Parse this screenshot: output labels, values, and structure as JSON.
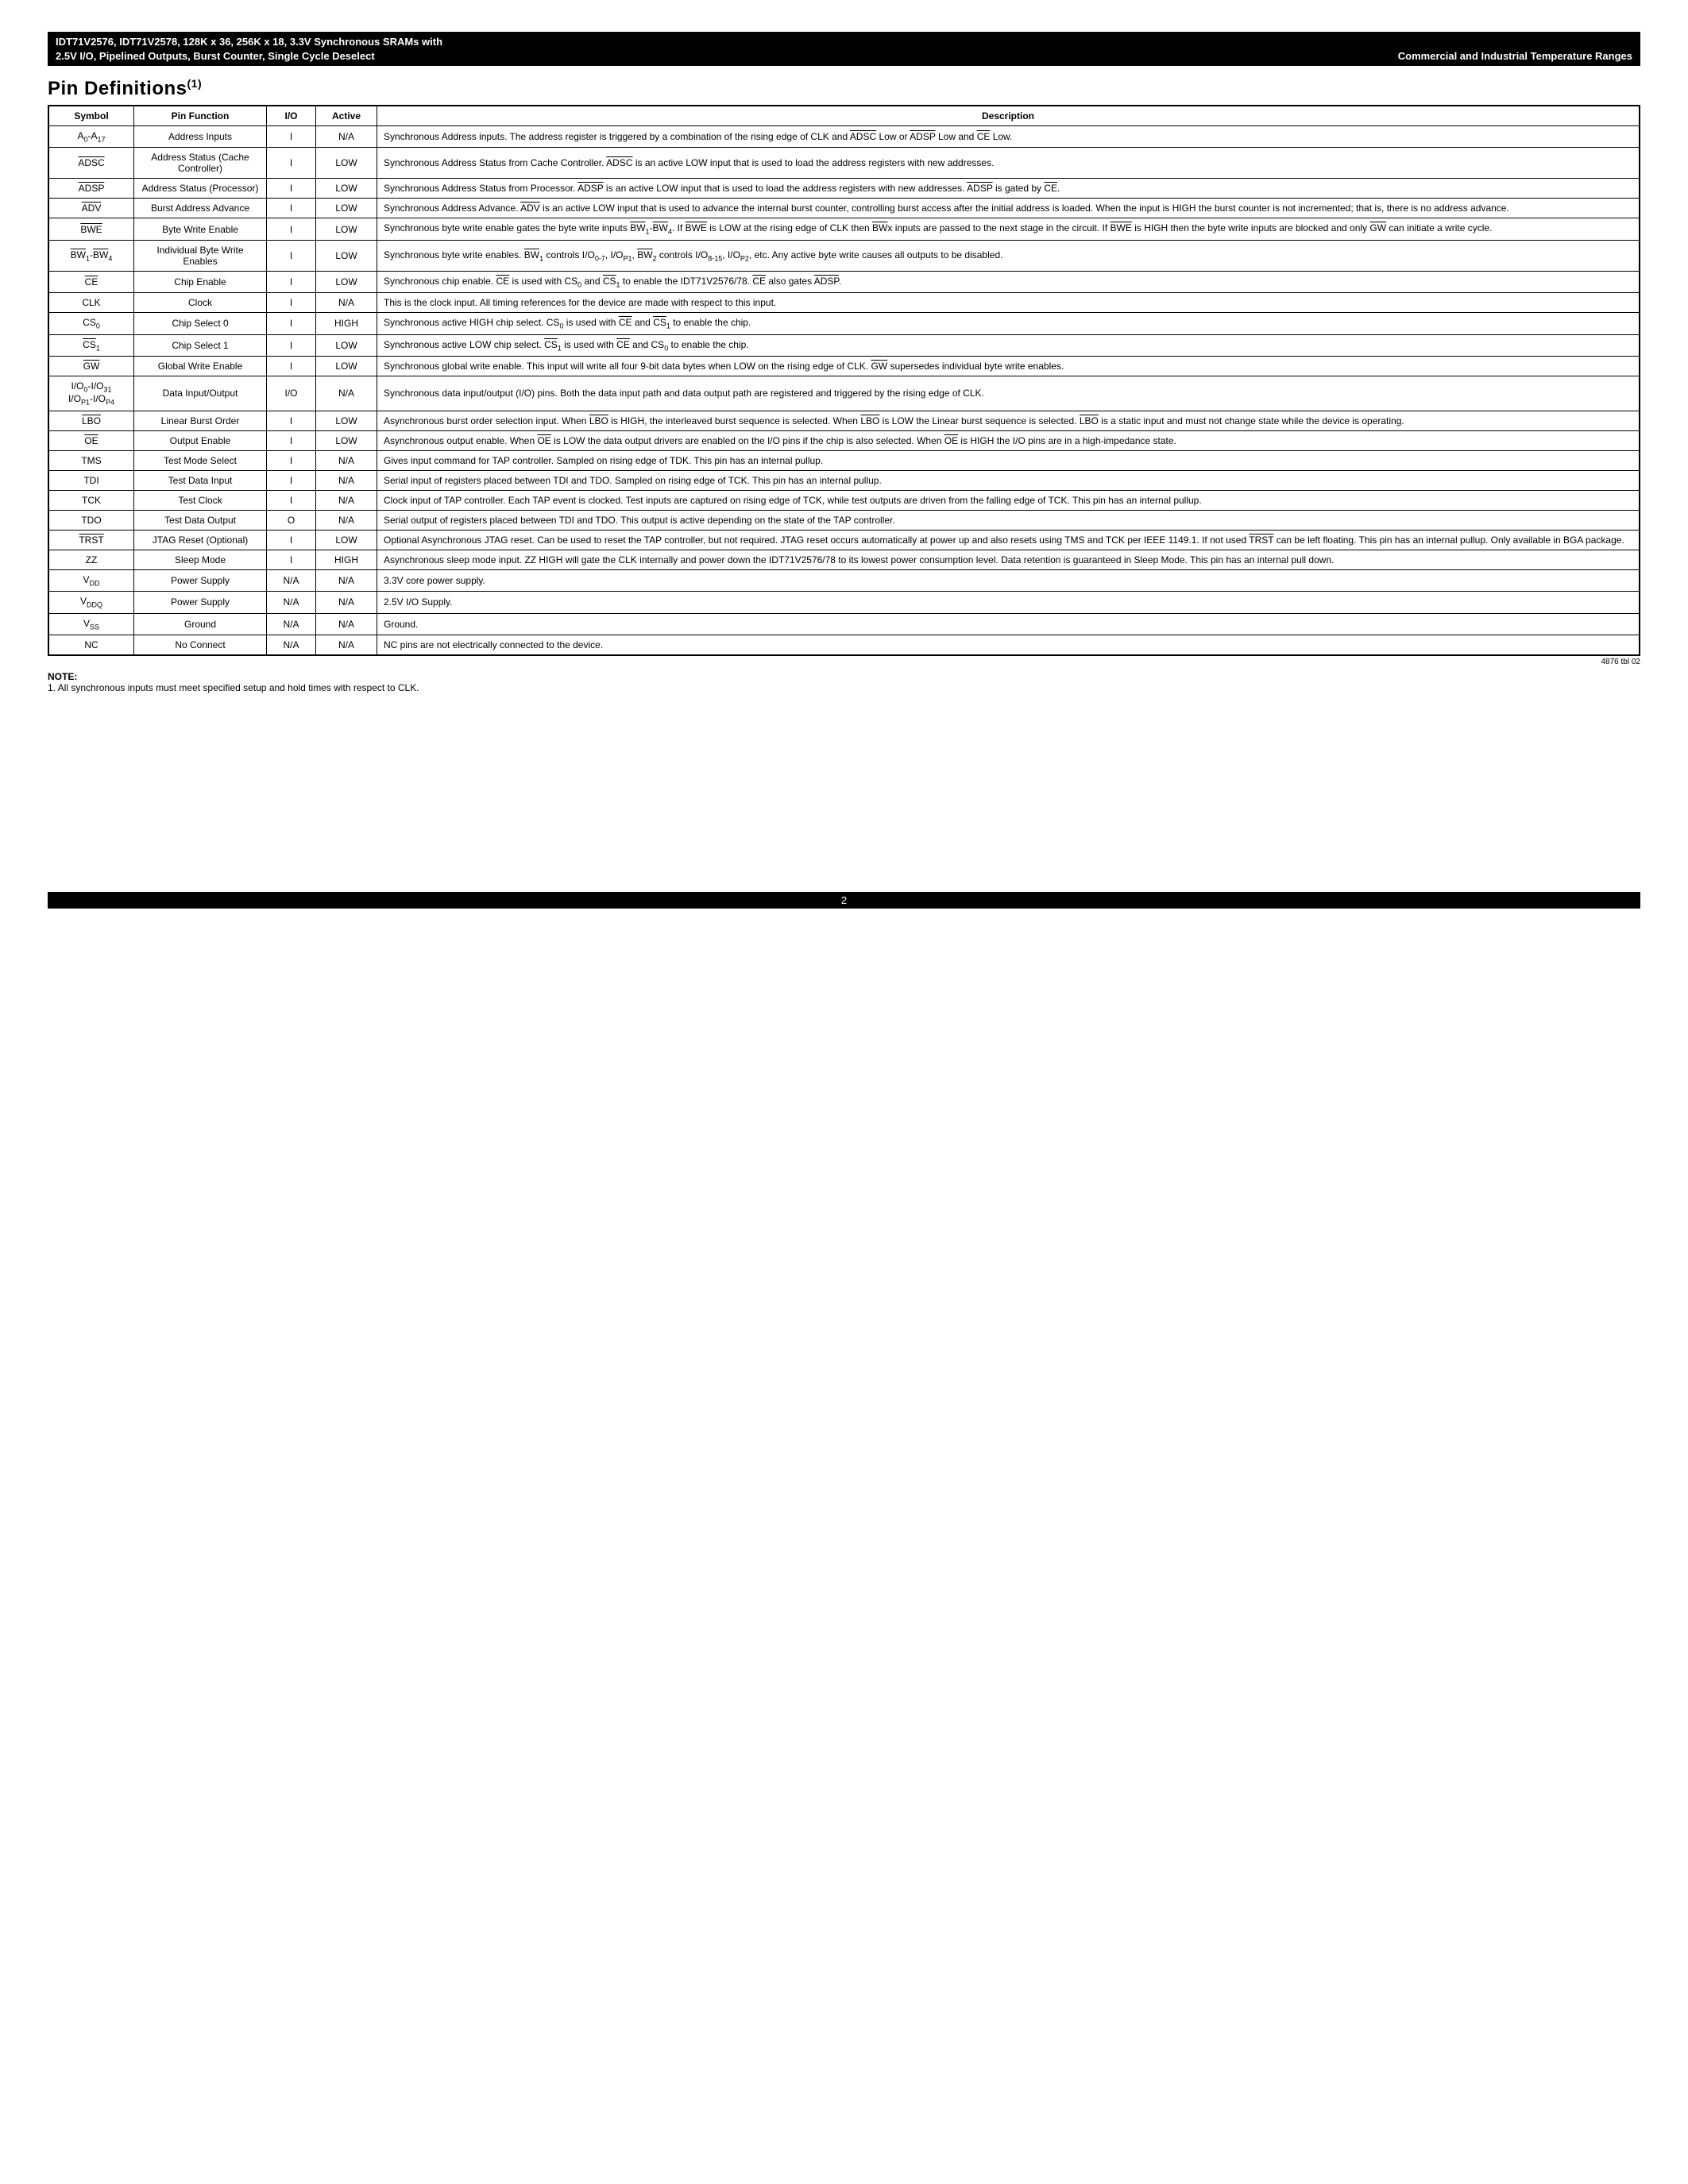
{
  "header": {
    "line1": "IDT71V2576, IDT71V2578, 128K x 36, 256K x 18, 3.3V Synchronous SRAMs with",
    "line2_left": "2.5V I/O, Pipelined Outputs, Burst Counter, Single Cycle Deselect",
    "line2_right": "Commercial and Industrial Temperature Ranges"
  },
  "section_title": "Pin Definitions",
  "section_title_sup": "(1)",
  "table": {
    "columns": [
      "Symbol",
      "Pin Function",
      "I/O",
      "Active",
      "Description"
    ],
    "rows": [
      {
        "symbol_html": "A<sub>0</sub>-A<sub>17</sub>",
        "func": "Address Inputs",
        "io": "I",
        "active": "N/A",
        "desc_html": "Synchronous Address inputs. The address register is triggered by a combination of the rising edge of CLK and <span class=\"overline\">ADSC</span> Low or <span class=\"overline\">ADSP</span> Low and <span class=\"overline\">CE</span> Low."
      },
      {
        "symbol_html": "<span class=\"overline\">ADSC</span>",
        "func": "Address Status (Cache Controller)",
        "io": "I",
        "active": "LOW",
        "desc_html": "Synchronous Address Status from Cache Controller. <span class=\"overline\">ADSC</span> is an active LOW input that is used to load the address registers with new addresses."
      },
      {
        "symbol_html": "<span class=\"overline\">ADSP</span>",
        "func": "Address Status (Processor)",
        "io": "I",
        "active": "LOW",
        "desc_html": "Synchronous Address Status from Processor. <span class=\"overline\">ADSP</span> is an active LOW input that is used to load the address registers with new addresses. <span class=\"overline\">ADSP</span> is gated by <span class=\"overline\">CE</span>."
      },
      {
        "symbol_html": "<span class=\"overline\">ADV</span>",
        "func": "Burst Address Advance",
        "io": "I",
        "active": "LOW",
        "desc_html": "Synchronous Address Advance. <span class=\"overline\">ADV</span> is an active LOW input that is used to advance the internal burst counter, controlling burst access after the initial address is loaded. When the input is HIGH the burst counter is not incremented; that is, there is no address advance."
      },
      {
        "symbol_html": "<span class=\"overline\">BWE</span>",
        "func": "Byte Write Enable",
        "io": "I",
        "active": "LOW",
        "desc_html": "Synchronous byte write enable gates the byte write inputs <span class=\"overline\">BW</span><sub>1</sub>-<span class=\"overline\">BW</span><sub>4</sub>. If <span class=\"overline\">BWE</span> is LOW at the rising edge of CLK then <span class=\"overline\">BW</span>x inputs are passed to the next stage in the circuit. If <span class=\"overline\">BWE</span> is HIGH then the byte write inputs are blocked and only <span class=\"overline\">GW</span> can initiate a write cycle."
      },
      {
        "symbol_html": "<span class=\"overline\">BW</span><sub>1</sub>-<span class=\"overline\">BW</span><sub>4</sub>",
        "func": "Individual Byte Write Enables",
        "io": "I",
        "active": "LOW",
        "desc_html": "Synchronous byte write enables. <span class=\"overline\">BW</span><sub>1</sub> controls I/O<sub>0-7</sub>, I/O<sub>P1</sub>, <span class=\"overline\">BW</span><sub>2</sub> controls I/O<sub>8-15</sub>, I/O<sub>P2</sub>, etc. Any active byte write causes all outputs to be disabled."
      },
      {
        "symbol_html": "<span class=\"overline\">CE</span>",
        "func": "Chip Enable",
        "io": "I",
        "active": "LOW",
        "desc_html": "Synchronous chip enable. <span class=\"overline\">CE</span> is used with CS<sub>0</sub> and <span class=\"overline\">CS</span><sub>1</sub> to enable the IDT71V2576/78. <span class=\"overline\">CE</span> also gates <span class=\"overline\">ADSP</span>."
      },
      {
        "symbol_html": "CLK",
        "func": "Clock",
        "io": "I",
        "active": "N/A",
        "desc_html": "This is the clock input. All timing references for the device are made with respect to this input."
      },
      {
        "symbol_html": "CS<sub>0</sub>",
        "func": "Chip Select 0",
        "io": "I",
        "active": "HIGH",
        "desc_html": "Synchronous active HIGH chip select. CS<sub>0</sub> is used with <span class=\"overline\">CE</span> and <span class=\"overline\">CS</span><sub>1</sub> to enable the chip."
      },
      {
        "symbol_html": "<span class=\"overline\">CS</span><sub>1</sub>",
        "func": "Chip Select 1",
        "io": "I",
        "active": "LOW",
        "desc_html": "Synchronous active LOW chip select. <span class=\"overline\">CS</span><sub>1</sub> is used with <span class=\"overline\">CE</span> and CS<sub>0</sub> to enable the chip."
      },
      {
        "symbol_html": "<span class=\"overline\">GW</span>",
        "func": "Global Write Enable",
        "io": "I",
        "active": "LOW",
        "desc_html": "Synchronous global write enable. This input will write all four 9-bit data bytes when LOW on the rising edge of CLK. <span class=\"overline\">GW</span> supersedes individual byte write enables."
      },
      {
        "symbol_html": "I/O<sub>0</sub>-I/O<sub>31</sub><br>I/O<sub>P1</sub>-I/O<sub>P4</sub>",
        "func": "Data Input/Output",
        "io": "I/O",
        "active": "N/A",
        "desc_html": "Synchronous data input/output (I/O) pins. Both the data input path and data output path are registered and triggered by the rising edge of CLK."
      },
      {
        "symbol_html": "<span class=\"overline\">LBO</span>",
        "func": "Linear Burst Order",
        "io": "I",
        "active": "LOW",
        "desc_html": "Asynchronous burst order selection input. When <span class=\"overline\">LBO</span> is HIGH, the interleaved burst sequence is selected. When <span class=\"overline\">LBO</span> is LOW the Linear burst sequence is selected. <span class=\"overline\">LBO</span> is a static input and must not change state while the device is operating."
      },
      {
        "symbol_html": "<span class=\"overline\">OE</span>",
        "func": "Output Enable",
        "io": "I",
        "active": "LOW",
        "desc_html": "Asynchronous output enable. When <span class=\"overline\">OE</span> is LOW the data output drivers are enabled on the I/O pins if the chip is also selected. When <span class=\"overline\">OE</span> is HIGH the I/O pins are in a high-impedance state."
      },
      {
        "symbol_html": "TMS",
        "func": "Test Mode Select",
        "io": "I",
        "active": "N/A",
        "desc_html": "Gives input command for TAP controller. Sampled on rising edge of TDK. This pin has an internal pullup."
      },
      {
        "symbol_html": "TDI",
        "func": "Test Data Input",
        "io": "I",
        "active": "N/A",
        "desc_html": "Serial input of registers placed between TDI and TDO. Sampled on rising edge of TCK. This pin has an internal pullup."
      },
      {
        "symbol_html": "TCK",
        "func": "Test Clock",
        "io": "I",
        "active": "N/A",
        "desc_html": "Clock input of TAP controller. Each TAP event is clocked. Test inputs are captured on rising edge of TCK, while test outputs are driven from the falling edge of TCK. This pin has an internal pullup."
      },
      {
        "symbol_html": "TDO",
        "func": "Test Data Output",
        "io": "O",
        "active": "N/A",
        "desc_html": "Serial output of registers placed between TDI and TDO. This output is active depending on the state of the TAP controller."
      },
      {
        "symbol_html": "<span class=\"overline\">TRST</span>",
        "func": "JTAG Reset (Optional)",
        "io": "I",
        "active": "LOW",
        "desc_html": "Optional Asynchronous JTAG reset. Can be used to reset the TAP controller, but not required. JTAG reset occurs automatically at power up and also resets using TMS and TCK per IEEE 1149.1. If not used <span class=\"overline\">TRST</span> can be left floating. This pin has an internal pullup. Only available in BGA package."
      },
      {
        "symbol_html": "ZZ",
        "func": "Sleep Mode",
        "io": "I",
        "active": "HIGH",
        "desc_html": "Asynchronous sleep mode input. ZZ HIGH will gate the CLK internally and power down the IDT71V2576/78 to its lowest power consumption level. Data retention is guaranteed in Sleep Mode. This pin has an internal pull down."
      },
      {
        "symbol_html": "V<sub>DD</sub>",
        "func": "Power Supply",
        "io": "N/A",
        "active": "N/A",
        "desc_html": "3.3V core power supply."
      },
      {
        "symbol_html": "V<sub>DDQ</sub>",
        "func": "Power Supply",
        "io": "N/A",
        "active": "N/A",
        "desc_html": "2.5V I/O Supply."
      },
      {
        "symbol_html": "V<sub>SS</sub>",
        "func": "Ground",
        "io": "N/A",
        "active": "N/A",
        "desc_html": "Ground."
      },
      {
        "symbol_html": "NC",
        "func": "No Connect",
        "io": "N/A",
        "active": "N/A",
        "desc_html": "NC pins are not electrically connected to the device."
      }
    ]
  },
  "reference_code": "4876 tbl 02",
  "note_label": "NOTE:",
  "note_text": "1.  All synchronous inputs must meet specified setup and hold times with respect to CLK.",
  "page_number": "2"
}
